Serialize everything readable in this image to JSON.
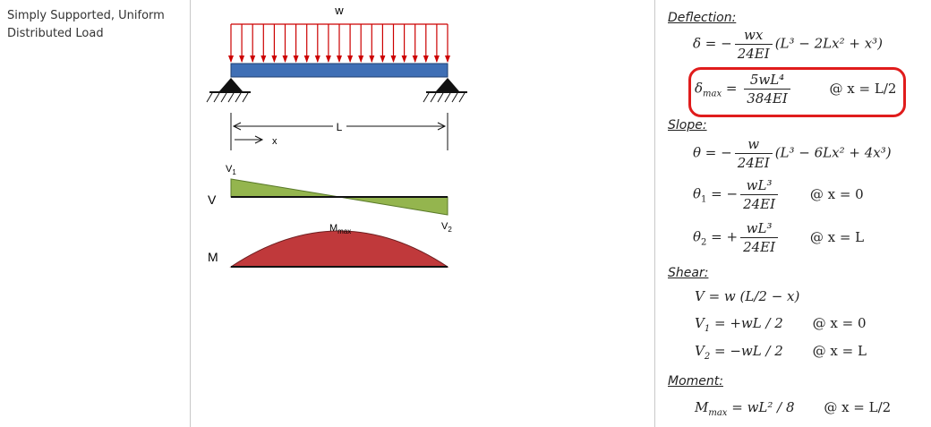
{
  "case_title": "Simply Supported, Uniform Distributed Load",
  "diagram": {
    "load_label": "w",
    "length_label": "L",
    "x_label": "x",
    "shear_label": "V",
    "moment_label": "M",
    "v1_label": "V",
    "v1_sub": "1",
    "v2_label": "V",
    "v2_sub": "2",
    "mmax_label": "M",
    "mmax_sub": "max",
    "colors": {
      "load_arrows": "#cc0000",
      "beam": "#3f6fb5",
      "shear": "#94b54e",
      "moment": "#c0393b"
    }
  },
  "sections": {
    "deflection": "Deflection:",
    "slope": "Slope:",
    "shear": "Shear:",
    "moment": "Moment:"
  },
  "formulas": {
    "delta_sym": "δ",
    "delta_frac_num": "wx",
    "delta_frac_den": "24EI",
    "delta_poly": "(L³ − 2Lx² + x³)",
    "dmax_sym": "δ",
    "dmax_sub": "max",
    "dmax_num": "5wL⁴",
    "dmax_den": "384EI",
    "dmax_cond": "@ x = L/2",
    "theta_sym": "θ",
    "theta_num": "w",
    "theta_den": "24EI",
    "theta_poly": "(L³ − 6Lx² + 4x³)",
    "theta1_sub": "1",
    "theta1_num": "wL³",
    "theta1_den": "24EI",
    "theta1_cond": "@ x = 0",
    "theta2_sub": "2",
    "theta2_num": "wL³",
    "theta2_den": "24EI",
    "theta2_cond": "@ x = L",
    "v_expr": "V = w (L/2 − x)",
    "v1_lhs": "V",
    "v1_sub": "1",
    "v1_rhs": "= +wL / 2",
    "v1_cond": "@ x = 0",
    "v2_lhs": "V",
    "v2_sub": "2",
    "v2_rhs": "= −wL / 2",
    "v2_cond": "@ x = L",
    "m_lhs": "M",
    "m_sub": "max",
    "m_rhs": "= wL² / 8",
    "m_cond": "@ x = L/2"
  }
}
